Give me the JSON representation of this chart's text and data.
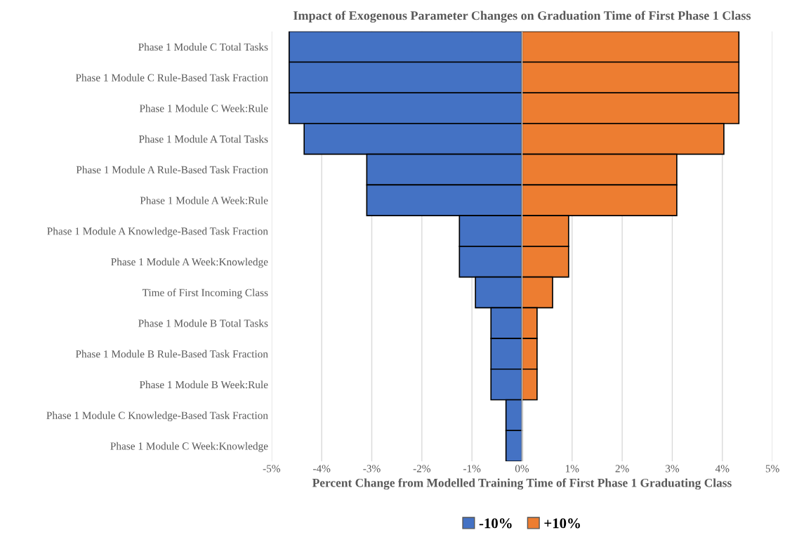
{
  "chart_data": {
    "type": "bar",
    "orientation": "horizontal",
    "stacked": true,
    "title": "Impact of Exogenous Parameter Changes on Graduation Time of First Phase 1 Class",
    "xlabel": "Percent Change from Modelled Training Time of First Phase 1 Graduating Class",
    "categories": [
      "Phase 1 Module C Total Tasks",
      "Phase 1 Module C Rule-Based Task Fraction",
      "Phase 1 Module C Week:Rule",
      "Phase 1 Module A Total Tasks",
      "Phase 1 Module A Rule-Based Task Fraction",
      "Phase 1 Module A Week:Rule",
      "Phase 1 Module A Knowledge-Based Task Fraction",
      "Phase 1 Module A Week:Knowledge",
      "Time of First Incoming Class",
      "Phase 1 Module B Total Tasks",
      "Phase 1 Module B Rule-Based Task Fraction",
      "Phase 1 Module B Week:Rule",
      "Phase 1 Module C Knowledge-Based Task Fraction",
      "Phase 1 Module C Week:Knowledge"
    ],
    "series": [
      {
        "name": "-10%",
        "color": "#4472c4",
        "values": [
          -4.65,
          -4.65,
          -4.65,
          -4.35,
          -3.1,
          -3.1,
          -1.25,
          -1.25,
          -0.93,
          -0.62,
          -0.62,
          -0.62,
          -0.32,
          -0.32
        ]
      },
      {
        "name": "+10%",
        "color": "#ed7d31",
        "values": [
          4.33,
          4.33,
          4.33,
          4.03,
          3.09,
          3.09,
          0.93,
          0.93,
          0.61,
          0.3,
          0.3,
          0.3,
          0,
          0
        ]
      }
    ],
    "xlim": [
      -5,
      5
    ],
    "xticks": [
      {
        "value": -5,
        "label": "-5%"
      },
      {
        "value": -4,
        "label": "-4%"
      },
      {
        "value": -3,
        "label": "-3%"
      },
      {
        "value": -2,
        "label": "-2%"
      },
      {
        "value": -1,
        "label": "-1%"
      },
      {
        "value": 0,
        "label": "0%"
      },
      {
        "value": 1,
        "label": "1%"
      },
      {
        "value": 2,
        "label": "2%"
      },
      {
        "value": 3,
        "label": "3%"
      },
      {
        "value": 4,
        "label": "4%"
      },
      {
        "value": 5,
        "label": "5%"
      }
    ],
    "grid": "x",
    "legend": "bottom"
  }
}
